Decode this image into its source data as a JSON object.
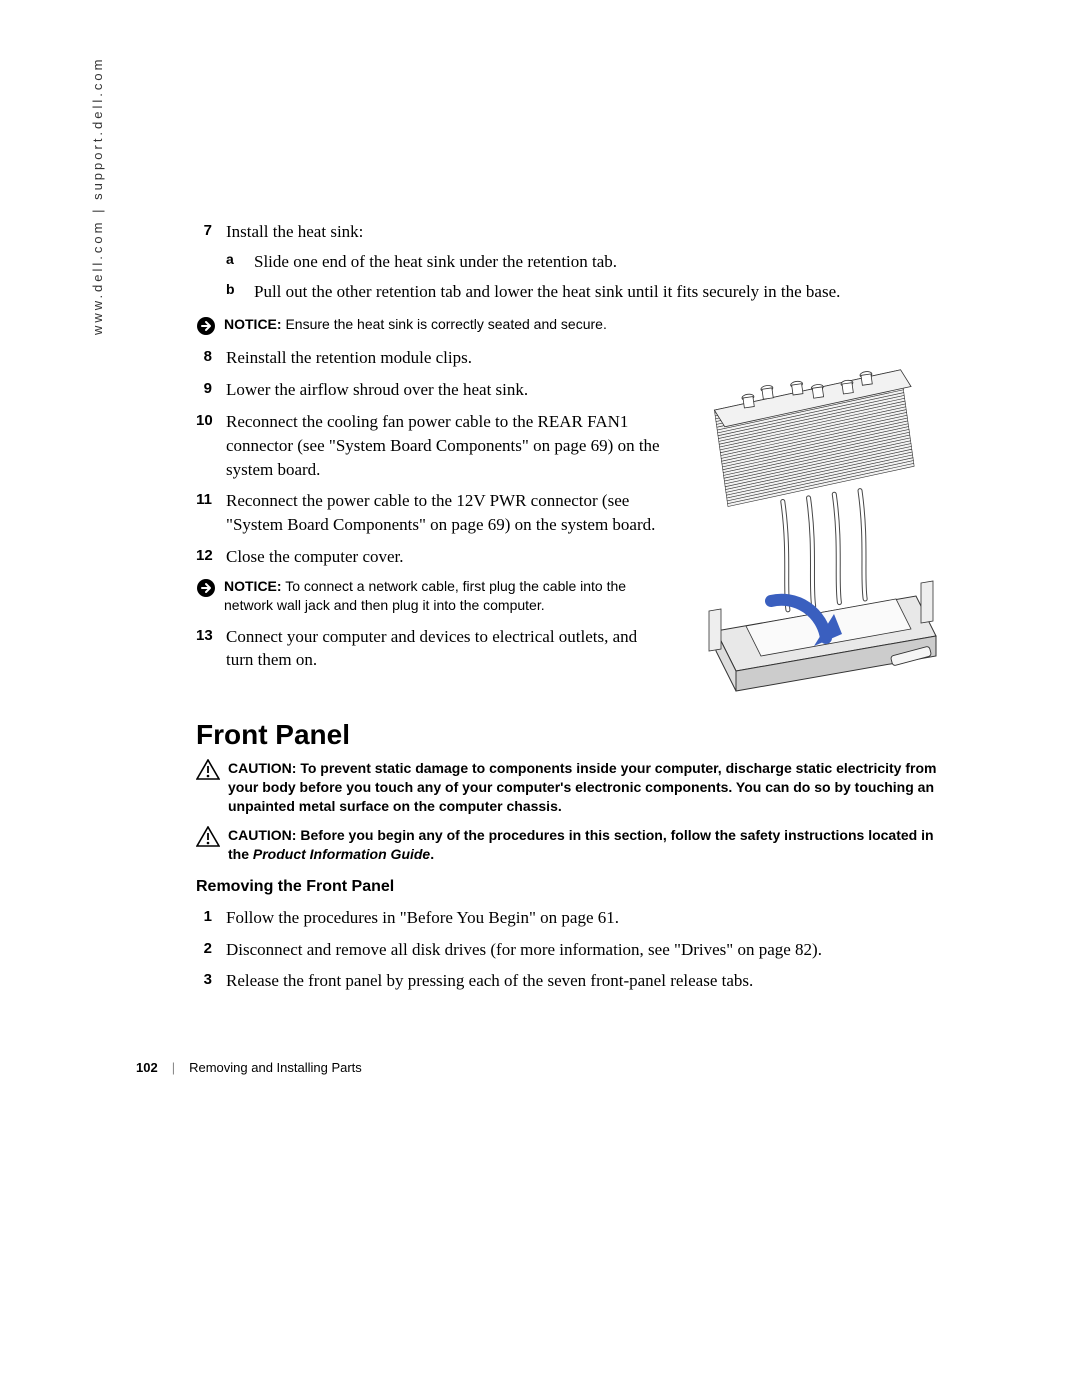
{
  "side_url": "www.dell.com | support.dell.com",
  "steps_top": {
    "s7": {
      "num": "7",
      "text": "Install the heat sink:"
    },
    "s7a": {
      "letter": "a",
      "text": "Slide one end of the heat sink under the retention tab."
    },
    "s7b": {
      "letter": "b",
      "text": "Pull out the other retention tab and lower the heat sink until it fits securely in the base."
    }
  },
  "notice1": {
    "lead": "NOTICE:",
    "text": " Ensure the heat sink is correctly seated and secure."
  },
  "steps_mid": {
    "s8": {
      "num": "8",
      "text": "Reinstall the retention module clips."
    },
    "s9": {
      "num": "9",
      "text": "Lower the airflow shroud over the heat sink."
    },
    "s10": {
      "num": "10",
      "text": "Reconnect the cooling fan power cable to the REAR FAN1 connector (see \"System Board Components\" on page 69) on the system board."
    },
    "s11": {
      "num": "11",
      "text": "Reconnect the power cable to the 12V PWR connector (see \"System Board Components\" on page 69) on the system board."
    },
    "s12": {
      "num": "12",
      "text": "Close the computer cover."
    }
  },
  "notice2": {
    "lead": "NOTICE:",
    "text": " To connect a network cable, first plug the cable into the network wall jack and then plug it into the computer."
  },
  "steps_after": {
    "s13": {
      "num": "13",
      "text": "Connect your computer and devices to electrical outlets, and turn them on."
    }
  },
  "heading1": "Front Panel",
  "caution1": {
    "lead": "CAUTION:",
    "text": " To prevent static damage to components inside your computer, discharge static electricity from your body before you touch any of your computer's electronic components. You can do so by touching an unpainted metal surface on the computer chassis."
  },
  "caution2": {
    "lead": "CAUTION:",
    "text_a": " Before you begin any of the procedures in this section, follow the safety instructions located in the ",
    "ital": "Product Information Guide",
    "text_b": "."
  },
  "heading2": "Removing the Front Panel",
  "steps_fp": {
    "s1": {
      "num": "1",
      "text": "Follow the procedures in \"Before You Begin\" on page 61."
    },
    "s2": {
      "num": "2",
      "text": "Disconnect and remove all disk drives (for more information, see \"Drives\" on page 82)."
    },
    "s3": {
      "num": "3",
      "text": "Release the front panel by pressing each of the seven front-panel release tabs."
    }
  },
  "footer": {
    "page": "102",
    "section": "Removing and Installing Parts"
  },
  "illustration": {
    "type": "technical-drawing",
    "subject": "heat-sink-assembly",
    "fin_count": 34,
    "post_count": 6,
    "arrow_color": "#3a5fbf",
    "line_color": "#333333",
    "fill_color": "#f2f2f2",
    "base_fill": "#e8e8e8"
  },
  "colors": {
    "text": "#000000",
    "notice_icon_bg": "#000000",
    "notice_icon_fg": "#ffffff",
    "caution_icon_stroke": "#000000"
  }
}
